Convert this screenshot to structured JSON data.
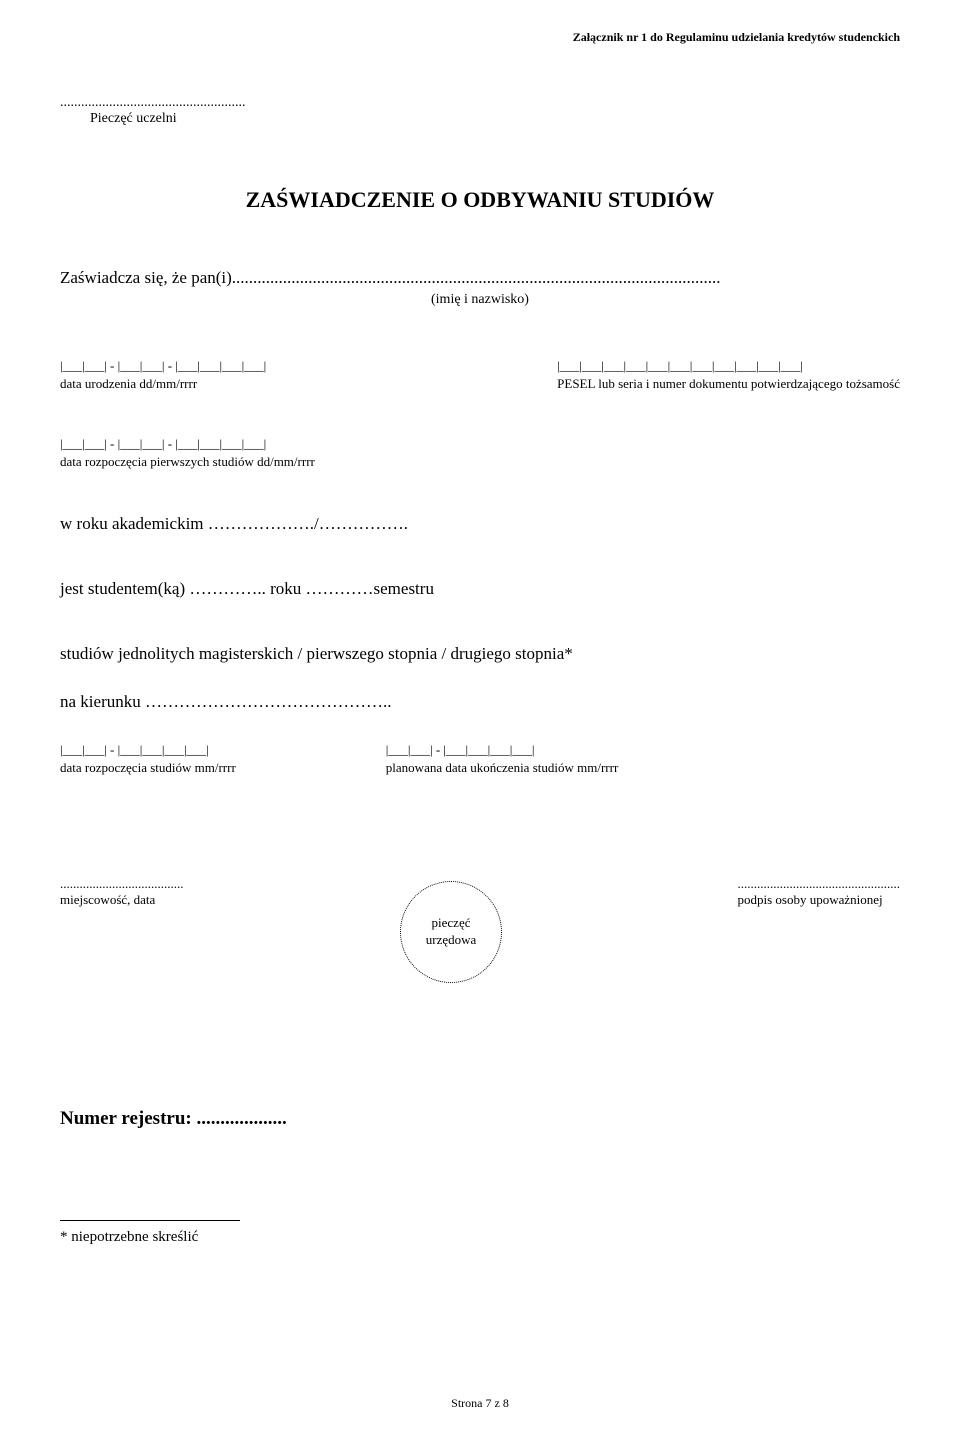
{
  "header_attachment": "Załącznik nr 1 do Regulaminu udzielania kredytów studenckich",
  "stamp_dots": ".....................................................",
  "stamp_label": "Pieczęć uczelni",
  "title": "ZAŚWIADCZENIE O ODBYWANIU STUDIÓW",
  "certifies_line": "Zaświadcza się, że pan(i)...................................................................................................................",
  "name_label": "(imię i nazwisko)",
  "birth_cells": "|___|___| - |___|___| - |___|___|___|___|",
  "birth_label": "data urodzenia dd/mm/rrrr",
  "pesel_cells": "|___|___|___|___|___|___|___|___|___|___|___|",
  "pesel_label": "PESEL lub seria i numer dokumentu potwierdzającego tożsamość",
  "first_start_cells": "|___|___| - |___|___| - |___|___|___|___|",
  "first_start_label": "data rozpoczęcia pierwszych studiów dd/mm/rrrr",
  "acad_year": "w roku akademickim ………………./…………….",
  "student_line": "jest studentem(ką) ………….. roku …………semestru",
  "study_type": "studiów jednolitych magisterskich / pierwszego stopnia / drugiego stopnia*",
  "field_line": "na kierunku ……………………………………..",
  "start_cells": "|___|___| - |___|___|___|___|",
  "start_label": "data rozpoczęcia studiów mm/rrrr",
  "end_cells": "|___|___| - |___|___|___|___|",
  "end_label": "planowana data ukończenia studiów mm/rrrr",
  "place_dots": "......................................",
  "place_label": "miejscowość, data",
  "sig_dots": "..................................................",
  "sig_label": "podpis osoby upoważnionej",
  "seal_text": "pieczęć\nurzędowa",
  "registry": "Numer rejestru: ...................",
  "footnote": "* niepotrzebne skreślić",
  "footer": "Strona 7 z 8"
}
